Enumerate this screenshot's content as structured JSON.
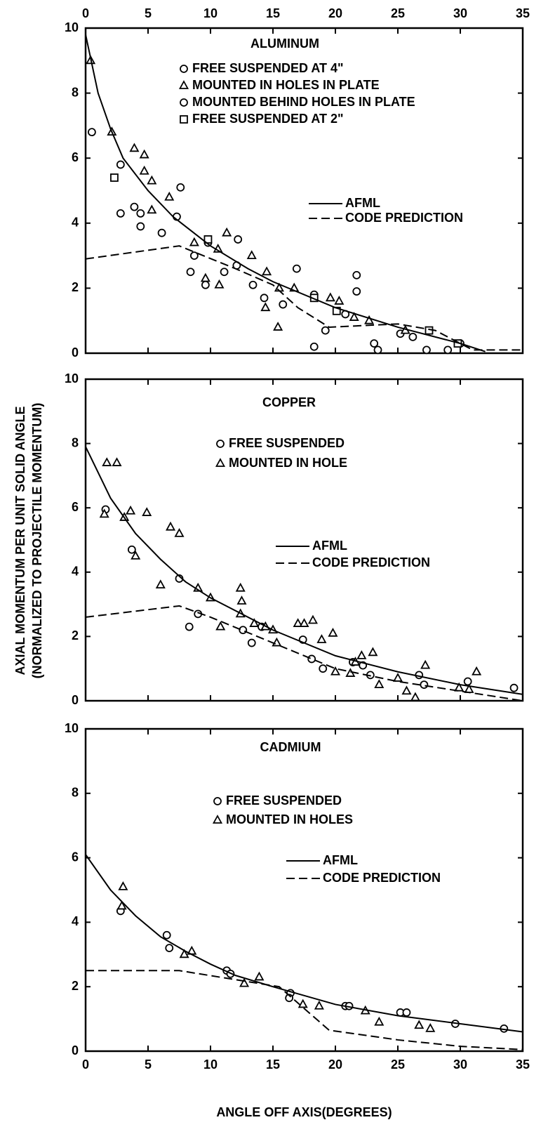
{
  "chart_data": [
    {
      "type": "scatter",
      "title": "ALUMINUM",
      "color": "#000000",
      "xlim": [
        0,
        35
      ],
      "ylim": [
        0,
        10
      ],
      "xticks": [
        0,
        5,
        10,
        15,
        20,
        25,
        30,
        35
      ],
      "yticks": [
        0,
        2,
        4,
        6,
        8,
        10
      ],
      "xtick_labels": "top",
      "series": [
        {
          "name": "FREE SUSPENDED AT 4\"",
          "marker": "circle",
          "x": [
            0.5,
            2.8,
            2.8,
            3.9,
            4.4,
            4.4,
            6.1,
            7.3,
            7.6,
            8.4,
            8.7,
            9.6,
            9.8,
            11.1,
            12.2,
            14.3,
            15.8,
            18.3,
            18.3,
            19.2,
            20.8,
            21.7,
            21.7,
            23.1,
            23.4,
            25.2,
            26.2,
            27.3,
            29.0,
            30.0
          ],
          "values": [
            6.8,
            4.3,
            5.8,
            4.5,
            4.3,
            3.9,
            3.7,
            4.2,
            5.1,
            2.5,
            3.0,
            2.1,
            3.4,
            2.5,
            3.5,
            1.7,
            1.5,
            1.8,
            0.2,
            0.7,
            1.2,
            2.4,
            1.9,
            0.3,
            0.1,
            0.6,
            0.5,
            0.1,
            0.1,
            0.3
          ]
        },
        {
          "name": "MOUNTED IN HOLES IN PLATE",
          "marker": "triangle",
          "x": [
            0.4,
            2.1,
            3.9,
            4.7,
            4.7,
            5.3,
            5.3,
            6.7,
            8.7,
            9.6,
            10.6,
            10.7,
            11.3,
            13.3,
            14.5,
            14.4,
            15.4,
            15.5,
            16.7,
            19.6,
            20.3,
            21.5,
            22.7,
            25.6
          ],
          "values": [
            9.0,
            6.8,
            6.3,
            6.1,
            5.6,
            5.3,
            4.4,
            4.8,
            3.4,
            2.3,
            3.2,
            2.1,
            3.7,
            3.0,
            2.5,
            1.4,
            0.8,
            2.0,
            2.0,
            1.7,
            1.6,
            1.1,
            1.0,
            0.7
          ]
        },
        {
          "name": "MOUNTED BEHIND HOLES IN PLATE",
          "marker": "circle",
          "x": [
            12.1,
            13.4,
            16.9
          ],
          "values": [
            2.7,
            2.1,
            2.6
          ]
        },
        {
          "name": "FREE SUSPENDED AT 2\"",
          "marker": "square",
          "x": [
            2.3,
            9.8,
            18.3,
            20.1,
            27.5,
            29.8
          ],
          "values": [
            5.4,
            3.5,
            1.7,
            1.3,
            0.7,
            0.3
          ]
        },
        {
          "name": "AFML",
          "marker": "line",
          "style": "solid",
          "x": [
            0,
            1,
            2,
            3,
            5,
            7,
            10,
            13,
            15,
            20,
            25,
            30,
            32
          ],
          "values": [
            9.8,
            8.0,
            6.9,
            6.0,
            5.0,
            4.2,
            3.3,
            2.6,
            2.2,
            1.4,
            0.8,
            0.3,
            0.05
          ]
        },
        {
          "name": "CODE PREDICTION",
          "marker": "line",
          "style": "dashed",
          "x": [
            0,
            7.5,
            12,
            15,
            17,
            19.5,
            25,
            28,
            31,
            35
          ],
          "values": [
            2.9,
            3.3,
            2.6,
            2.1,
            1.4,
            0.8,
            0.9,
            0.7,
            0.1,
            0.1
          ]
        }
      ]
    },
    {
      "type": "scatter",
      "title": "COPPER",
      "color": "#000000",
      "xlim": [
        0,
        35
      ],
      "ylim": [
        0,
        10
      ],
      "xticks": [
        0,
        5,
        10,
        15,
        20,
        25,
        30,
        35
      ],
      "yticks": [
        0,
        2,
        4,
        6,
        8,
        10
      ],
      "xtick_labels": "none",
      "ylabel": [
        "AXIAL MOMENTUM PER UNIT SOLID ANGLE",
        "(NORMALIZED TO PROJECTILE MOMENTUM)"
      ],
      "series": [
        {
          "name": "FREE SUSPENDED",
          "marker": "circle",
          "x": [
            1.6,
            3.7,
            7.5,
            8.3,
            9.0,
            12.6,
            13.3,
            14.1,
            17.4,
            18.1,
            19.0,
            21.4,
            22.2,
            22.8,
            26.7,
            27.1,
            30.6,
            34.3
          ],
          "values": [
            5.95,
            4.7,
            3.8,
            2.3,
            2.7,
            2.2,
            1.8,
            2.3,
            1.9,
            1.3,
            1.0,
            1.2,
            1.1,
            0.8,
            0.8,
            0.5,
            0.6,
            0.4
          ]
        },
        {
          "name": "MOUNTED IN HOLE",
          "marker": "triangle",
          "x": [
            1.7,
            2.5,
            1.5,
            3.1,
            3.6,
            4.0,
            4.9,
            6.0,
            6.8,
            7.5,
            9.0,
            10.0,
            10.8,
            12.4,
            12.5,
            12.4,
            13.5,
            14.4,
            15.0,
            15.3,
            17.0,
            17.5,
            18.2,
            18.9,
            19.8,
            20.0,
            21.2,
            21.6,
            22.1,
            23.0,
            23.5,
            25.0,
            25.7,
            26.4,
            27.2,
            29.9,
            30.7,
            31.3
          ],
          "values": [
            7.4,
            7.4,
            5.8,
            5.7,
            5.9,
            4.5,
            5.85,
            3.6,
            5.4,
            5.2,
            3.5,
            3.2,
            2.3,
            3.5,
            3.1,
            2.7,
            2.4,
            2.3,
            2.2,
            1.8,
            2.4,
            2.4,
            2.5,
            1.9,
            2.1,
            0.9,
            0.85,
            1.2,
            1.4,
            1.5,
            0.5,
            0.7,
            0.3,
            0.1,
            1.1,
            0.4,
            0.35,
            0.9
          ]
        },
        {
          "name": "AFML",
          "marker": "line",
          "style": "solid",
          "x": [
            0,
            2,
            4,
            6,
            8,
            10,
            15,
            20,
            25,
            30,
            35
          ],
          "values": [
            7.9,
            6.3,
            5.2,
            4.4,
            3.7,
            3.2,
            2.2,
            1.4,
            0.9,
            0.5,
            0.2
          ]
        },
        {
          "name": "CODE PREDICTION",
          "marker": "line",
          "style": "dashed",
          "x": [
            0,
            7.5,
            10,
            15,
            20,
            25,
            30,
            35
          ],
          "values": [
            2.6,
            2.95,
            2.6,
            1.8,
            1.0,
            0.6,
            0.3,
            0.0
          ]
        }
      ]
    },
    {
      "type": "scatter",
      "title": "CADMIUM",
      "color": "#000000",
      "xlim": [
        0,
        35
      ],
      "ylim": [
        0,
        10
      ],
      "xticks": [
        0,
        5,
        10,
        15,
        20,
        25,
        30,
        35
      ],
      "yticks": [
        0,
        2,
        4,
        6,
        8,
        10
      ],
      "xtick_labels": "bottom",
      "xlabel": "ANGLE OFF AXIS(DEGREES)",
      "series": [
        {
          "name": "FREE SUSPENDED",
          "marker": "circle",
          "x": [
            2.8,
            6.5,
            6.7,
            11.3,
            11.6,
            16.4,
            16.3,
            20.8,
            21.1,
            25.2,
            25.7,
            29.6,
            33.5
          ],
          "values": [
            4.35,
            3.6,
            3.2,
            2.5,
            2.4,
            1.8,
            1.65,
            1.4,
            1.4,
            1.2,
            1.2,
            0.85,
            0.7
          ]
        },
        {
          "name": "MOUNTED IN HOLES",
          "marker": "triangle",
          "x": [
            3.0,
            2.9,
            7.9,
            8.5,
            12.7,
            13.9,
            17.4,
            18.7,
            22.4,
            23.5,
            26.7,
            27.6
          ],
          "values": [
            5.1,
            4.5,
            3.0,
            3.1,
            2.1,
            2.3,
            1.45,
            1.4,
            1.25,
            0.9,
            0.8,
            0.7
          ]
        },
        {
          "name": "AFML",
          "marker": "line",
          "style": "solid",
          "x": [
            0,
            2,
            4,
            6,
            8,
            10,
            12,
            15,
            20,
            25,
            30,
            35
          ],
          "values": [
            6.1,
            5.0,
            4.2,
            3.55,
            3.1,
            2.7,
            2.35,
            2.0,
            1.45,
            1.1,
            0.85,
            0.6
          ]
        },
        {
          "name": "CODE PREDICTION",
          "marker": "line",
          "style": "dashed",
          "x": [
            0,
            7.5,
            15.5,
            19.5,
            25,
            30,
            35
          ],
          "values": [
            2.5,
            2.5,
            2.0,
            0.65,
            0.35,
            0.15,
            0.05
          ]
        }
      ]
    }
  ]
}
